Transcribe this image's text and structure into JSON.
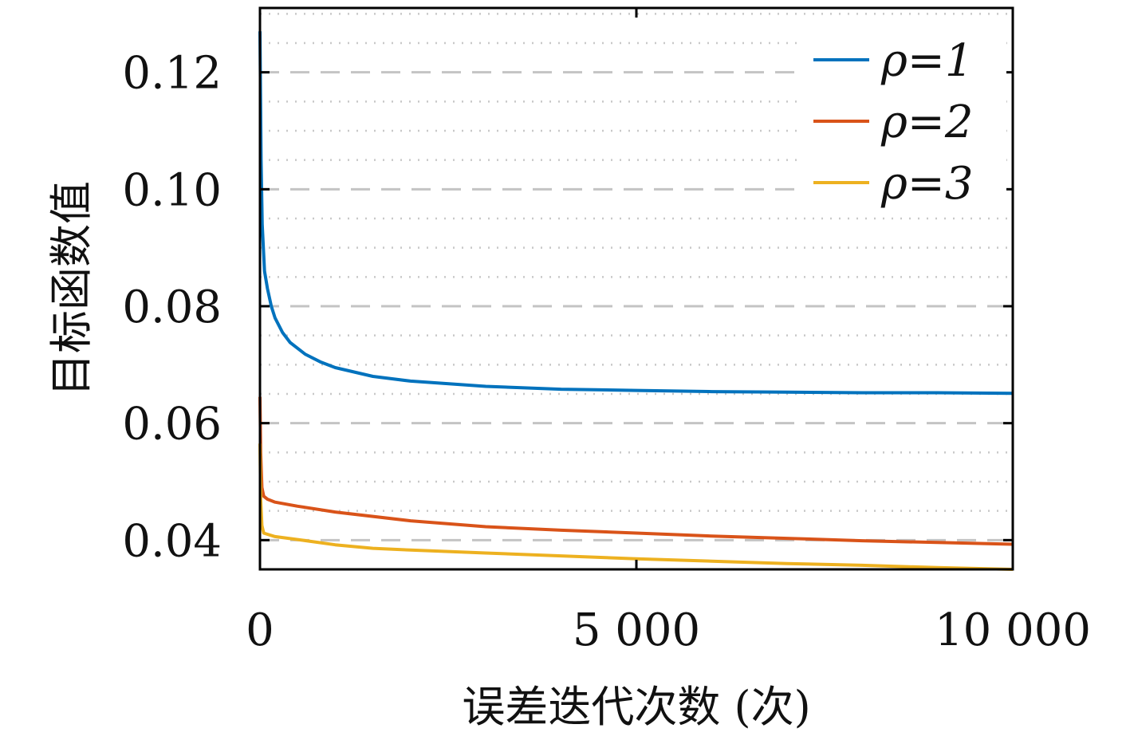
{
  "chart_data": {
    "type": "line",
    "xlabel": "误差迭代次数 (次)",
    "ylabel": "目标函数值",
    "xlim": [
      0,
      10000
    ],
    "ylim": [
      0.035,
      0.131
    ],
    "x_ticks": [
      0,
      5000,
      10000
    ],
    "x_tick_labels": [
      "0",
      "5 000",
      "10 000"
    ],
    "y_ticks": [
      0.04,
      0.06,
      0.08,
      0.1,
      0.12
    ],
    "y_tick_labels": [
      "0.04",
      "0.06",
      "0.08",
      "0.10",
      "0.12"
    ],
    "grid": {
      "major": "dashed",
      "minor": "dotted",
      "minor_step": 0.005
    },
    "legend_position": "top-right",
    "series": [
      {
        "name": "ρ=1",
        "color": "#0072BD",
        "x": [
          0,
          15,
          30,
          60,
          100,
          150,
          200,
          300,
          400,
          600,
          800,
          1000,
          1500,
          2000,
          3000,
          4000,
          5000,
          6000,
          7000,
          8000,
          9000,
          10000
        ],
        "y": [
          0.127,
          0.105,
          0.094,
          0.086,
          0.083,
          0.08,
          0.078,
          0.0755,
          0.0738,
          0.0718,
          0.0705,
          0.0695,
          0.068,
          0.0672,
          0.0663,
          0.0658,
          0.0656,
          0.0654,
          0.0653,
          0.0652,
          0.0652,
          0.0651
        ]
      },
      {
        "name": "ρ=2",
        "color": "#D95319",
        "x": [
          0,
          10,
          25,
          50,
          100,
          200,
          500,
          1000,
          2000,
          3000,
          4000,
          5000,
          6000,
          7000,
          8000,
          9000,
          10000
        ],
        "y": [
          0.0645,
          0.055,
          0.049,
          0.0475,
          0.047,
          0.0465,
          0.0458,
          0.0448,
          0.0433,
          0.0423,
          0.0417,
          0.0412,
          0.0407,
          0.0403,
          0.0399,
          0.0396,
          0.0393
        ]
      },
      {
        "name": "ρ=3",
        "color": "#EDB120",
        "x": [
          0,
          10,
          25,
          50,
          100,
          200,
          500,
          1000,
          1500,
          2000,
          3000,
          4000,
          5000,
          6000,
          7000,
          8000,
          9000,
          10000
        ],
        "y": [
          0.0565,
          0.047,
          0.0425,
          0.0412,
          0.041,
          0.0406,
          0.0401,
          0.0392,
          0.0386,
          0.0383,
          0.0378,
          0.0373,
          0.0368,
          0.0364,
          0.036,
          0.0357,
          0.0353,
          0.035
        ]
      }
    ]
  }
}
